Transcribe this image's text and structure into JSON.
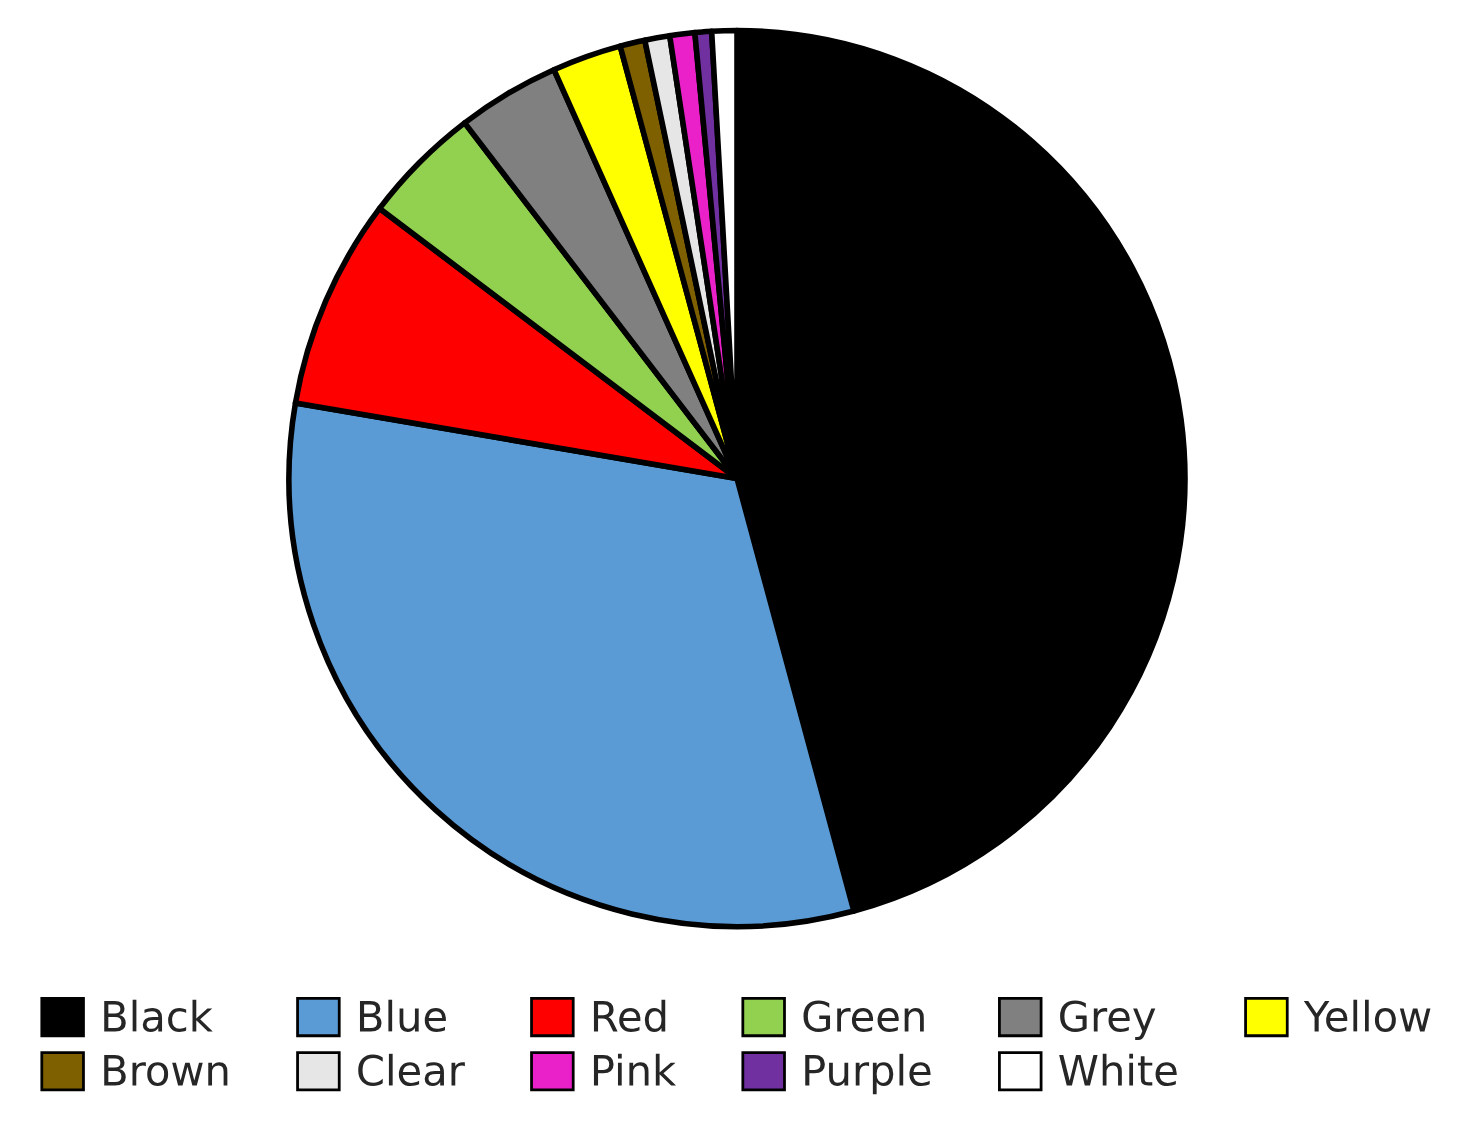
{
  "chart_data": {
    "type": "pie",
    "categories": [
      "Black",
      "Blue",
      "Red",
      "Green",
      "Grey",
      "Yellow",
      "Brown",
      "Clear",
      "Pink",
      "Purple",
      "White"
    ],
    "values": [
      45.8,
      31.9,
      7.6,
      4.3,
      3.7,
      2.5,
      0.9,
      0.9,
      0.9,
      0.6,
      0.9
    ],
    "colors": [
      "#000000",
      "#5b9bd5",
      "#ff0000",
      "#92d050",
      "#808080",
      "#ffff00",
      "#7f6000",
      "#e6e6e6",
      "#ea21c8",
      "#7030a0",
      "#ffffff"
    ],
    "legend": "bottom"
  }
}
